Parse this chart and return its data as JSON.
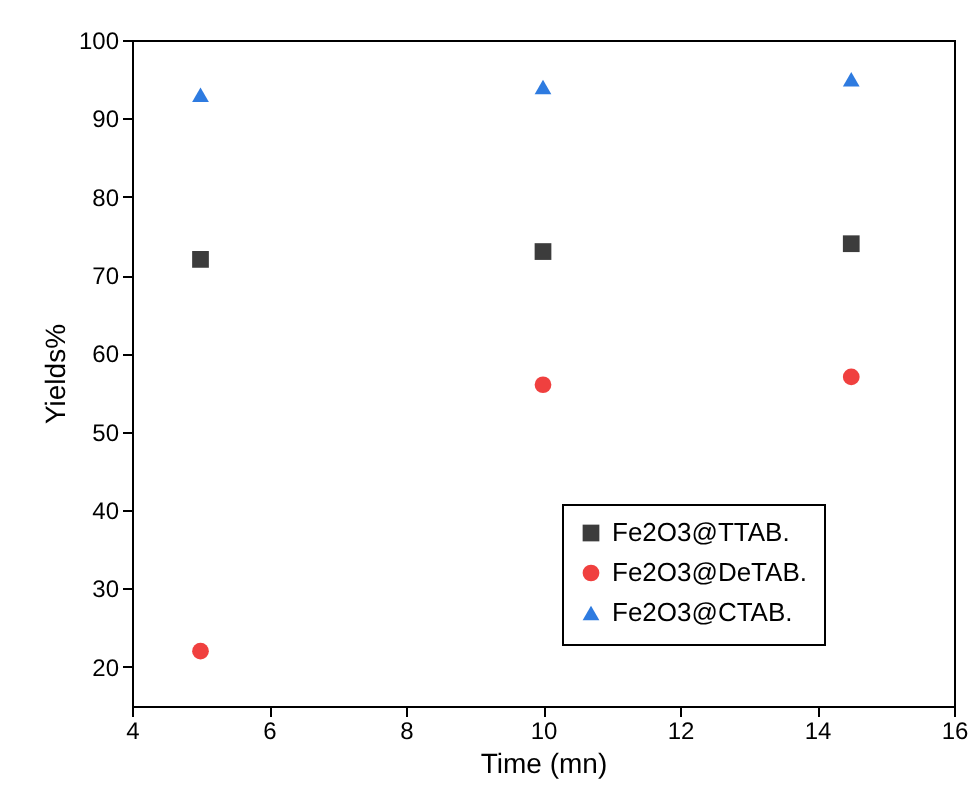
{
  "chart_data": {
    "type": "scatter",
    "xlabel": "Time (mn)",
    "ylabel": "Yields%",
    "x": [
      5,
      10,
      14.5
    ],
    "series": [
      {
        "name": "Fe2O3@TTAB.",
        "color": "#3c3c3c",
        "marker": "square",
        "values": [
          72,
          73,
          74
        ]
      },
      {
        "name": "Fe2O3@DeTAB.",
        "color": "#f0403f",
        "marker": "circle",
        "values": [
          22,
          56,
          57
        ]
      },
      {
        "name": "Fe2O3@CTAB.",
        "color": "#2e7be0",
        "marker": "triangle",
        "values": [
          93,
          94,
          95
        ]
      }
    ],
    "xlim": [
      4,
      16
    ],
    "xticks": [
      4,
      6,
      8,
      10,
      12,
      14,
      16
    ],
    "ylim": [
      15,
      100
    ],
    "yticks": [
      20,
      30,
      40,
      50,
      60,
      70,
      80,
      90,
      100
    ],
    "grid": false,
    "legend": "bottom right"
  }
}
